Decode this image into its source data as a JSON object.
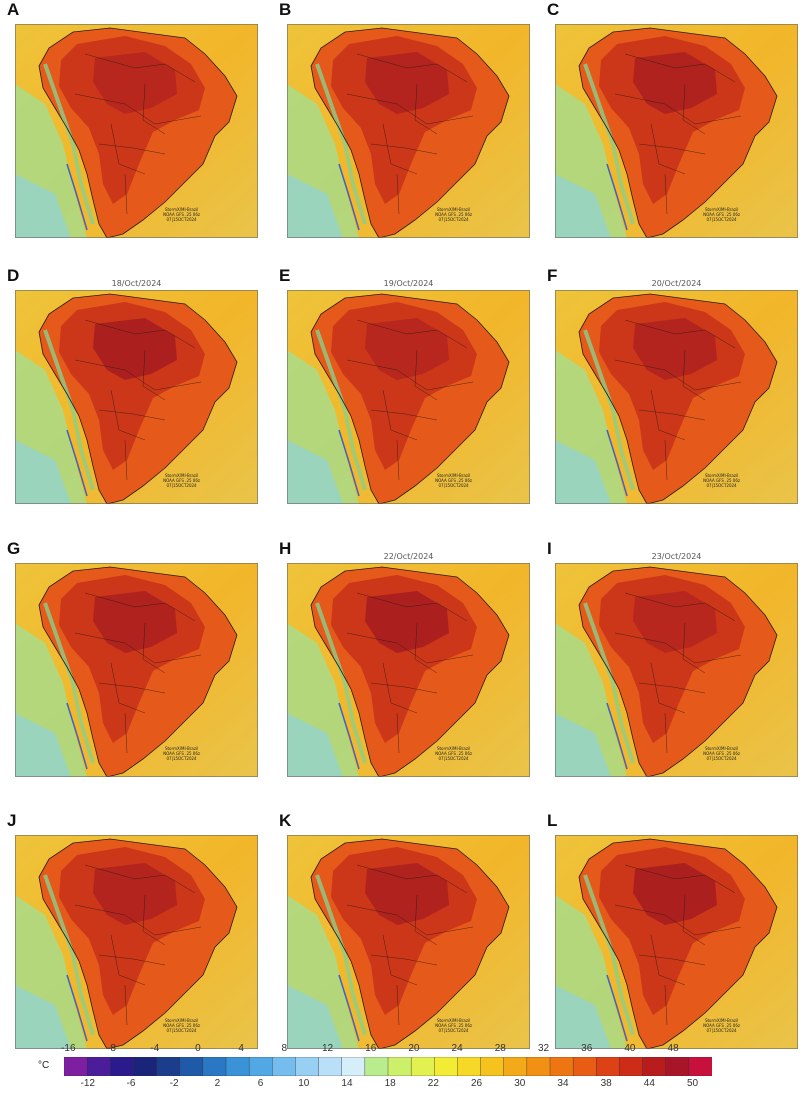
{
  "panels": [
    {
      "letter": "A",
      "date": ""
    },
    {
      "letter": "B",
      "date": ""
    },
    {
      "letter": "C",
      "date": ""
    },
    {
      "letter": "D",
      "date": "18/Oct/2024"
    },
    {
      "letter": "E",
      "date": "19/Oct/2024"
    },
    {
      "letter": "F",
      "date": "20/Oct/2024"
    },
    {
      "letter": "G",
      "date": ""
    },
    {
      "letter": "H",
      "date": "22/Oct/2024"
    },
    {
      "letter": "I",
      "date": "23/Oct/2024"
    },
    {
      "letter": "J",
      "date": ""
    },
    {
      "letter": "K",
      "date": ""
    },
    {
      "letter": "L",
      "date": ""
    }
  ],
  "credit": [
    "StormX/MI-Brazil",
    "NOAA GFS .25 06z",
    "07|15OCT2024"
  ],
  "colorbar": {
    "unit": "°C",
    "top_ticks": [
      "-16",
      "-8",
      "-4",
      "0",
      "4",
      "8",
      "12",
      "16",
      "20",
      "24",
      "28",
      "32",
      "36",
      "40",
      "48"
    ],
    "bottom_ticks": [
      "-12",
      "-6",
      "-2",
      "2",
      "6",
      "10",
      "14",
      "18",
      "22",
      "26",
      "30",
      "34",
      "38",
      "44",
      "50"
    ],
    "colors": [
      "#7d1fa0",
      "#4b1d9a",
      "#2a1a8c",
      "#1a2478",
      "#1c3c8c",
      "#1f5aa8",
      "#2a78c4",
      "#3a92d8",
      "#52a8e4",
      "#74bdee",
      "#98d0f4",
      "#b9e0f8",
      "#d6eefa",
      "#b8ec8c",
      "#cdf06a",
      "#e2f050",
      "#f2ec34",
      "#f6d826",
      "#f6c21e",
      "#f4aa18",
      "#f29014",
      "#ee7612",
      "#e85c14",
      "#dc4216",
      "#cc2c18",
      "#b81c1c",
      "#a81428",
      "#c8103c"
    ]
  }
}
